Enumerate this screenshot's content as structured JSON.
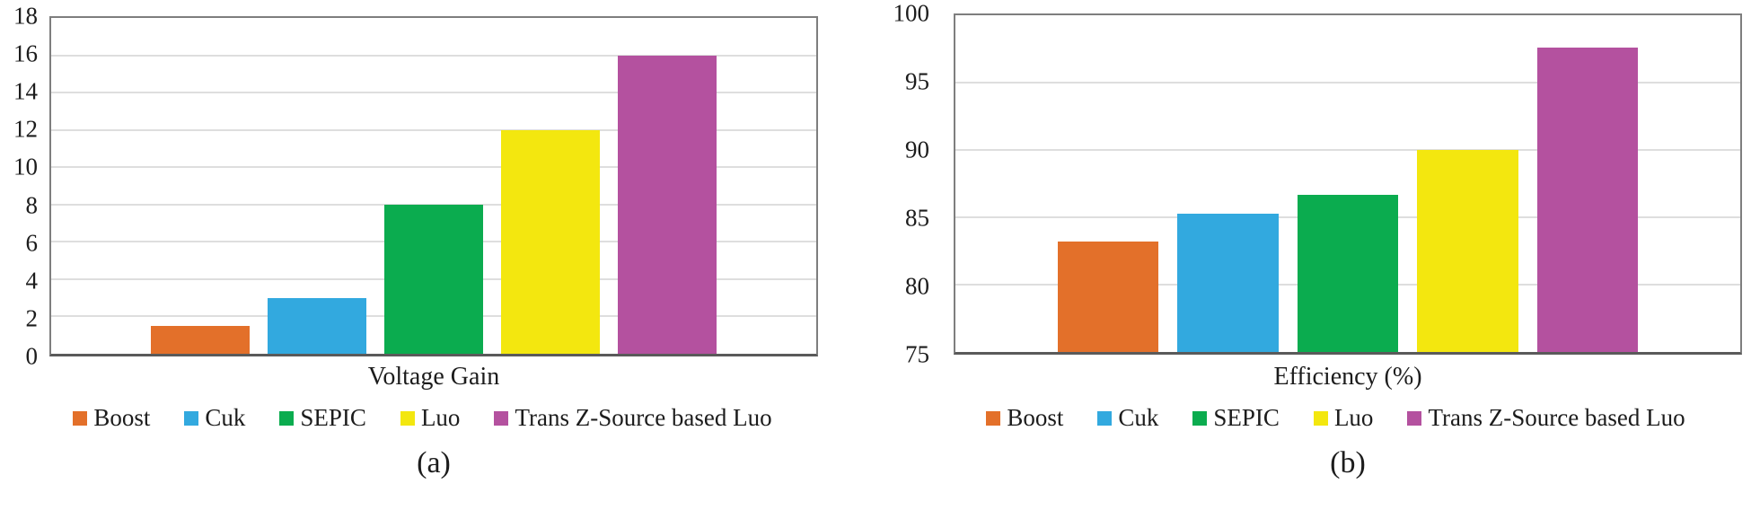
{
  "colors": {
    "boost": "#E3702A",
    "cuk": "#32A9DF",
    "sepic": "#0BAC4F",
    "luo": "#F3E70F",
    "trans_z_source_luo": "#B4519F",
    "gridline": "#DEDEDE",
    "plot_border": "#7E7E7E",
    "axis_line": "#5A5A5A",
    "text": "#1C1C1C"
  },
  "chart_data": [
    {
      "type": "bar",
      "title": "Voltage Gain",
      "caption": "(a)",
      "categories": [
        "Boost",
        "Cuk",
        "SEPIC",
        "Luo",
        "Trans Z-Source based Luo"
      ],
      "values": [
        1.5,
        3,
        8,
        12,
        16
      ],
      "colors": [
        "#E3702A",
        "#32A9DF",
        "#0BAC4F",
        "#F3E70F",
        "#B4519F"
      ],
      "xlabel": "Voltage Gain",
      "ylabel": "",
      "ylim": [
        0,
        18
      ],
      "yticks": [
        0,
        2,
        4,
        6,
        8,
        10,
        12,
        14,
        16,
        18
      ],
      "grid": true,
      "legend_position": "bottom"
    },
    {
      "type": "bar",
      "title": "Efficiency (%)",
      "caption": "(b)",
      "categories": [
        "Boost",
        "Cuk",
        "SEPIC",
        "Luo",
        "Trans Z-Source based Luo"
      ],
      "values": [
        83.2,
        85.3,
        86.7,
        90,
        97.6
      ],
      "colors": [
        "#E3702A",
        "#32A9DF",
        "#0BAC4F",
        "#F3E70F",
        "#B4519F"
      ],
      "xlabel": "Efficiency (%)",
      "ylabel": "",
      "ylim": [
        75,
        100
      ],
      "yticks": [
        75,
        80,
        85,
        90,
        95,
        100
      ],
      "grid": true,
      "legend_position": "bottom"
    }
  ]
}
